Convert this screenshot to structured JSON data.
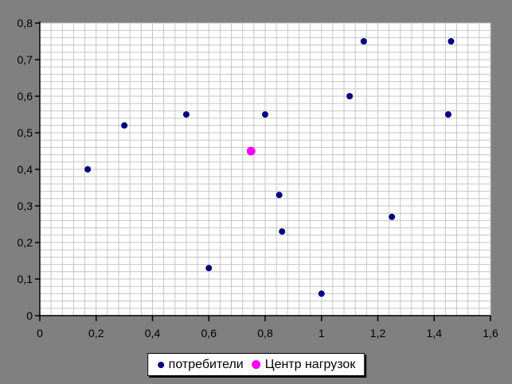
{
  "colors": {
    "background": "#808080",
    "plot_background": "#ffffff",
    "gridline": "#c6c6c6",
    "axis": "#000000",
    "tick_label": "#000000",
    "legend_background": "#ffffff",
    "legend_border": "#000000"
  },
  "chart_data": {
    "type": "scatter",
    "title": "",
    "xlabel": "",
    "ylabel": "",
    "xlim": [
      0,
      1.6
    ],
    "ylim": [
      0,
      0.8
    ],
    "x_major_unit": 0.2,
    "x_minor_unit": 0.04,
    "y_major_unit": 0.1,
    "y_minor_unit": 0.02,
    "grid": "minor-both",
    "legend_position": "bottom-center",
    "decimal_separator": ",",
    "x_tick_labels": [
      "0",
      "0,2",
      "0,4",
      "0,6",
      "0,8",
      "1",
      "1,2",
      "1,4",
      "1,6"
    ],
    "y_tick_labels": [
      "0",
      "0,1",
      "0,2",
      "0,3",
      "0,4",
      "0,5",
      "0,6",
      "0,7",
      "0,8"
    ],
    "series": [
      {
        "name": "потребители",
        "color": "#000080",
        "marker": "circle",
        "marker_size_px": 8,
        "points": [
          [
            0.17,
            0.4
          ],
          [
            0.3,
            0.52
          ],
          [
            0.52,
            0.55
          ],
          [
            0.6,
            0.13
          ],
          [
            0.8,
            0.55
          ],
          [
            0.85,
            0.33
          ],
          [
            0.86,
            0.23
          ],
          [
            1.0,
            0.06
          ],
          [
            1.1,
            0.6
          ],
          [
            1.15,
            0.75
          ],
          [
            1.25,
            0.27
          ],
          [
            1.45,
            0.55
          ],
          [
            1.46,
            0.75
          ]
        ]
      },
      {
        "name": "Центр нагрузок",
        "color": "#ff00ff",
        "marker": "circle",
        "marker_size_px": 11,
        "points": [
          [
            0.75,
            0.45
          ]
        ]
      }
    ]
  }
}
